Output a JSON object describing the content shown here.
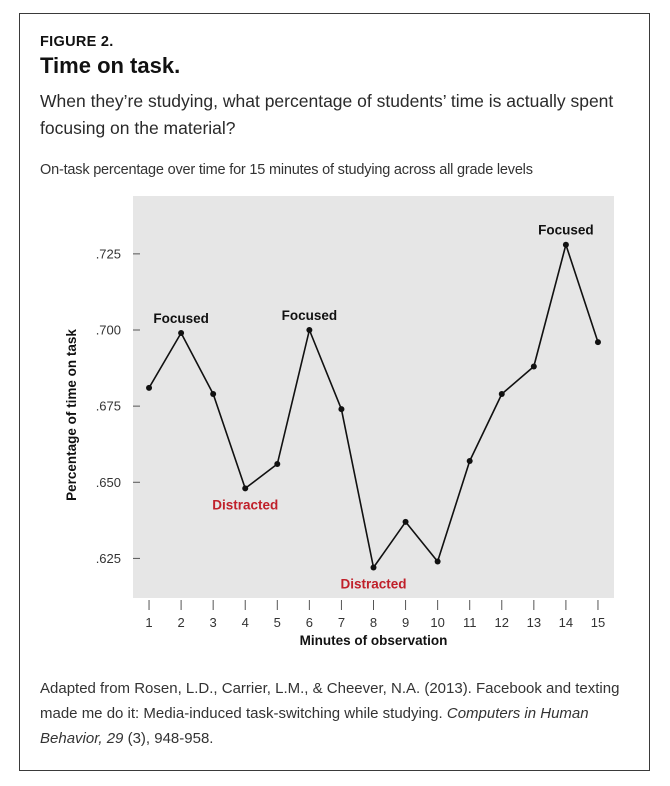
{
  "figure": {
    "label": "FIGURE 2.",
    "title": "Time on task.",
    "question": "When they’re studying, what percentage of students’ time is actually spent focusing on the material?",
    "caption": "On-task percentage over time for 15 minutes of studying across all grade levels"
  },
  "source": {
    "prefix": "Adapted from Rosen, L.D., Carrier, L.M., & Cheever, N.A. (2013). Facebook and texting made me do it: Media-induced task-switching while studying. ",
    "journal": "Computers in Human Behavior, 29",
    "suffix": " (3), 948-958."
  },
  "colors": {
    "plot_background": "#e6e6e6",
    "line": "#111111",
    "focused_label": "#111111",
    "distracted_label": "#c0202a"
  },
  "chart_data": {
    "type": "line",
    "title": "",
    "xlabel": "Minutes of observation",
    "ylabel": "Percentage of time on task",
    "x": [
      1,
      2,
      3,
      4,
      5,
      6,
      7,
      8,
      9,
      10,
      11,
      12,
      13,
      14,
      15
    ],
    "series": [
      {
        "values": [
          0.681,
          0.699,
          0.679,
          0.648,
          0.656,
          0.7,
          0.674,
          0.622,
          0.637,
          0.624,
          0.657,
          0.679,
          0.688,
          0.728,
          0.696
        ]
      }
    ],
    "xlim": [
      0.5,
      15.5
    ],
    "ylim": [
      0.612,
      0.744
    ],
    "x_ticks": [
      1,
      2,
      3,
      4,
      5,
      6,
      7,
      8,
      9,
      10,
      11,
      12,
      13,
      14,
      15
    ],
    "y_ticks": [
      0.625,
      0.65,
      0.675,
      0.7,
      0.725
    ],
    "y_tick_labels": [
      ".625",
      ".650",
      ".675",
      ".700",
      ".725"
    ],
    "grid": false,
    "legend": "none",
    "annotations": [
      {
        "text": "Focused",
        "x": 2,
        "y": 0.699,
        "kind": "focused",
        "position": "above"
      },
      {
        "text": "Focused",
        "x": 6,
        "y": 0.7,
        "kind": "focused",
        "position": "above"
      },
      {
        "text": "Focused",
        "x": 14,
        "y": 0.728,
        "kind": "focused",
        "position": "above"
      },
      {
        "text": "Distracted",
        "x": 4,
        "y": 0.648,
        "kind": "distracted",
        "position": "below"
      },
      {
        "text": "Distracted",
        "x": 8,
        "y": 0.622,
        "kind": "distracted",
        "position": "below"
      }
    ]
  }
}
